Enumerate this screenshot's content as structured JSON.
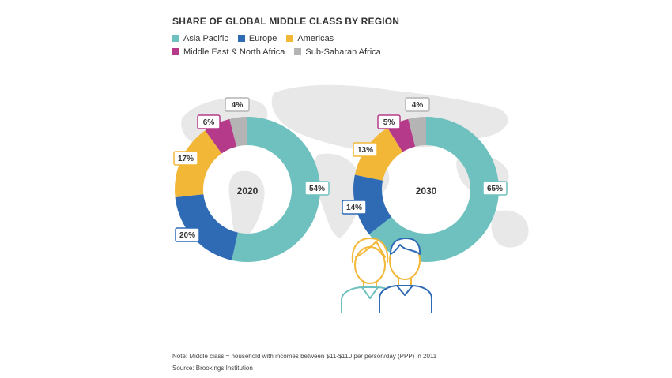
{
  "title": "SHARE OF GLOBAL MIDDLE CLASS BY REGION",
  "colors": {
    "asia_pacific": "#6ec1be",
    "europe": "#2f6bb5",
    "americas": "#f2b737",
    "mena": "#b53a8a",
    "ssa": "#b4b4b4",
    "illustration_yellow": "#f2b737",
    "illustration_blue": "#2f6bb5",
    "illustration_teal": "#6ec1be"
  },
  "legend": [
    {
      "label": "Asia Pacific",
      "color": "#6ec1be"
    },
    {
      "label": "Europe",
      "color": "#2f6bb5"
    },
    {
      "label": "Americas",
      "color": "#f2b737"
    },
    {
      "label": "Middle East & North Africa",
      "color": "#b53a8a"
    },
    {
      "label": "Sub-Saharan Africa",
      "color": "#b4b4b4"
    }
  ],
  "chart_data": {
    "type": "pie",
    "title": "SHARE OF GLOBAL MIDDLE CLASS BY REGION",
    "legend_position": "top-left",
    "categories": [
      "Asia Pacific",
      "Europe",
      "Americas",
      "Middle East & North Africa",
      "Sub-Saharan Africa"
    ],
    "charts": [
      {
        "name": "2020",
        "values": [
          54,
          20,
          17,
          6,
          4
        ],
        "labels": [
          "54%",
          "20%",
          "17%",
          "6%",
          "4%"
        ]
      },
      {
        "name": "2030",
        "values": [
          65,
          14,
          13,
          5,
          4
        ],
        "labels": [
          "65%",
          "14%",
          "13%",
          "5%",
          "4%"
        ]
      }
    ]
  },
  "footer": {
    "note": "Note: Middle class = household with incomes between $11-$110 per person/day (PPP) in 2011",
    "source": "Source: Brookings Institution"
  }
}
